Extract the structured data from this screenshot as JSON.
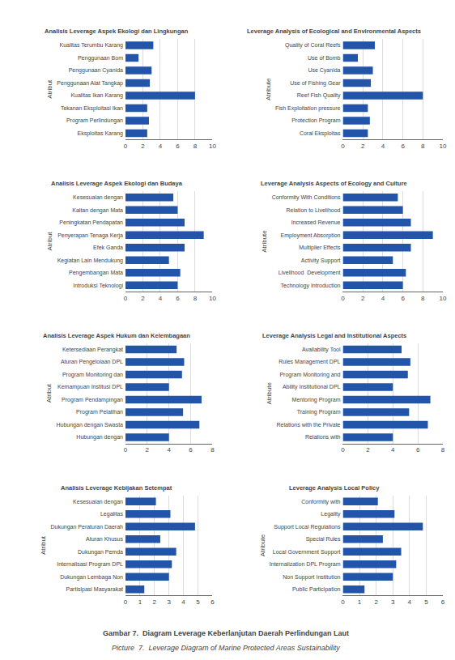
{
  "chart_data": [
    {
      "type": "bar",
      "orientation": "horizontal",
      "title": "Analisis Leverage Aspek Ekologi dan Lingkungan",
      "ylabel": "Atribut",
      "categories": [
        "Eksploitas Karang",
        "Program Perlindungan",
        "Tekanan Eksploitasi Ikan",
        "Kualitas Ikan Karang",
        "Penggunaan Alat Tangkap",
        "Penggunaan Cyanida",
        "Penggunaan Bom",
        "Kualitas Terumbu Karang"
      ],
      "values": [
        2.5,
        2.7,
        2.5,
        8.0,
        2.8,
        3.0,
        1.5,
        3.2
      ],
      "color": "#2255aa",
      "xlim": [
        0,
        10
      ],
      "xticks": [
        0,
        2,
        4,
        6,
        8,
        10
      ],
      "grid": true
    },
    {
      "type": "bar",
      "orientation": "horizontal",
      "title": "Leverage Analysis of Ecological and Environmental Aspects",
      "ylabel": "Atribute",
      "categories": [
        "Coral Eksploitas",
        "Protection Program",
        "Fish Exploitation pressure",
        "Reef Fish Quality",
        "Use of Fishing Gear",
        "Use Cyanida",
        "Use of Bomb",
        "Quality of Coral Reefs"
      ],
      "values": [
        2.5,
        2.7,
        2.5,
        8.0,
        2.8,
        3.0,
        1.5,
        3.2
      ],
      "color": "#2255aa",
      "xlim": [
        0,
        10
      ],
      "xticks": [
        0,
        2,
        4,
        6,
        8,
        10
      ],
      "grid": true
    },
    {
      "type": "bar",
      "orientation": "horizontal",
      "title": "Analisis Leverage Aspek Ekologi dan Budaya",
      "ylabel": "Atribut",
      "categories": [
        "Introduksi Teknologi",
        "Pengembangan Mata",
        "Kegiatan Lain Mendukung",
        "Efek Ganda",
        "Penyerapan Tenaga Kerja",
        "Peningkatan Pendapatan",
        "Kaitan dengan Mata",
        "Kesesuaian dengan"
      ],
      "values": [
        6.0,
        6.3,
        5.0,
        6.8,
        9.0,
        6.8,
        6.0,
        5.5
      ],
      "color": "#2255aa",
      "xlim": [
        0,
        10
      ],
      "xticks": [
        0,
        2,
        4,
        6,
        8,
        10
      ],
      "grid": true
    },
    {
      "type": "bar",
      "orientation": "horizontal",
      "title": "Leverage Analysis Aspects of Ecology and Culture",
      "ylabel": "Atribute",
      "categories": [
        "Technology Introduction",
        "Livelihood  Development",
        "Activity Support",
        "Multiplier Effects",
        "Employment Absorption",
        "Increased Revenue",
        "Relation to Livelihood",
        "Conformity With Conditions"
      ],
      "values": [
        6.0,
        6.3,
        5.0,
        6.8,
        9.0,
        6.8,
        6.0,
        5.5
      ],
      "color": "#2255aa",
      "xlim": [
        0,
        10
      ],
      "xticks": [
        0,
        2,
        4,
        6,
        8,
        10
      ],
      "grid": true
    },
    {
      "type": "bar",
      "orientation": "horizontal",
      "title": "Analisis Leverage Aspek Hukum dan Kelembagaan",
      "ylabel": "Atribut",
      "categories": [
        "Hubungan dengan",
        "Hubungan dengan Swasta",
        "Program Pelatihan",
        "Program Pendampingan",
        "Kemampuan Institusi DPL",
        "Program Monitoring dan",
        "Aturan Pengelolaan DPL",
        "Ketersediaan Perangkat"
      ],
      "values": [
        4.0,
        6.8,
        5.3,
        7.0,
        4.0,
        5.2,
        5.4,
        4.7
      ],
      "color": "#2255aa",
      "xlim": [
        0,
        8
      ],
      "xticks": [
        0,
        2,
        4,
        6,
        8
      ],
      "grid": true
    },
    {
      "type": "bar",
      "orientation": "horizontal",
      "title": "Leverage Analysis Legal and Institutional Aspects",
      "ylabel": "Atribute",
      "categories": [
        "Relations with",
        "Relations with the Private",
        "Training Program",
        "Mentoring Program",
        "Ability Institutional DPL",
        "Program Monitoring and",
        "Rules Management DPL",
        "Availability Tool"
      ],
      "values": [
        4.0,
        6.8,
        5.3,
        7.0,
        4.0,
        5.2,
        5.4,
        4.7
      ],
      "color": "#2255aa",
      "xlim": [
        0,
        8
      ],
      "xticks": [
        0,
        2,
        4,
        6,
        8
      ],
      "grid": true
    },
    {
      "type": "bar",
      "orientation": "horizontal",
      "title": "Analisis Leverage Kebijakan Setempat",
      "ylabel": "Atribut",
      "categories": [
        "Partisipasi Masyarakat",
        "Dukungan Lembaga Non",
        "Internalisasi Program DPL",
        "Dukungan Pemda",
        "Aturan Khusus",
        "Dukungan Peraturan Daerah",
        "Legalitas",
        "Kesesuaian dengan"
      ],
      "values": [
        1.3,
        3.0,
        3.2,
        3.5,
        2.4,
        4.8,
        3.1,
        2.1
      ],
      "color": "#2255aa",
      "xlim": [
        0,
        6
      ],
      "xticks": [
        0,
        1,
        2,
        3,
        4,
        5,
        6
      ],
      "grid": true
    },
    {
      "type": "bar",
      "orientation": "horizontal",
      "title": "Leverage Analysis Local Policy",
      "ylabel": "Atribute",
      "categories": [
        "Public Participation",
        "Non Support Institution",
        "Internalization DPL Program",
        "Local Government Support",
        "Special Rules",
        "Support Local Regulations",
        "Legality",
        "Conformity with"
      ],
      "values": [
        1.3,
        3.0,
        3.2,
        3.5,
        2.4,
        4.8,
        3.1,
        2.1
      ],
      "color": "#2255aa",
      "xlim": [
        0,
        6
      ],
      "xticks": [
        0,
        1,
        2,
        3,
        4,
        5,
        6
      ],
      "grid": true
    }
  ],
  "annotations": [
    "Gambar 7.  Diagram Leverage Keberlanjutan Daerah Perlindungan Laut",
    "Picture  7.  Leverage Diagram of Marine Protected Areas Sustainability"
  ]
}
